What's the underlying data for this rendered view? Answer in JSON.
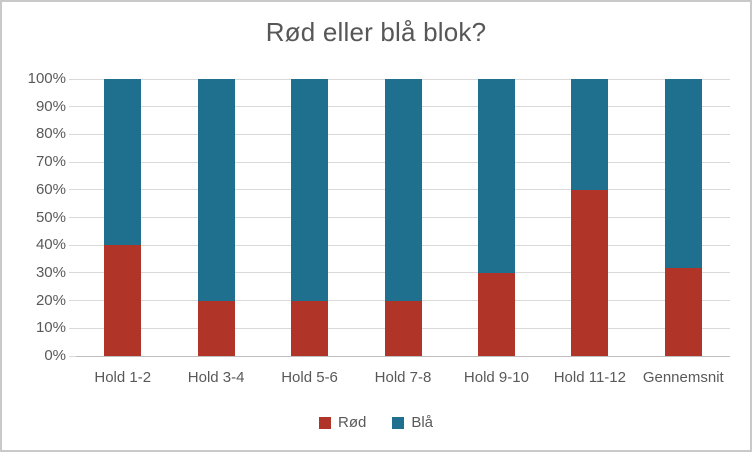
{
  "window": {
    "background_color": "#FFFFFF",
    "border_color": "#C9C9C9"
  },
  "chart_data": {
    "type": "bar",
    "subtype": "100-percent-stacked-column",
    "title": "Rød eller blå blok?",
    "categories": [
      "Hold 1-2",
      "Hold 3-4",
      "Hold 5-6",
      "Hold 7-8",
      "Hold 9-10",
      "Hold 11-12",
      "Gennemsnit"
    ],
    "series": [
      {
        "name": "Rød",
        "color": "#B03427",
        "values": [
          40,
          20,
          20,
          20,
          30,
          60,
          31.7
        ]
      },
      {
        "name": "Blå",
        "color": "#1F6F8E",
        "values": [
          60,
          80,
          80,
          80,
          70,
          40,
          68.3
        ]
      }
    ],
    "xlabel": "",
    "ylabel": "",
    "y_axis": {
      "min": 0,
      "max": 100,
      "step": 10,
      "tick_labels": [
        "0%",
        "10%",
        "20%",
        "30%",
        "40%",
        "50%",
        "60%",
        "70%",
        "80%",
        "90%",
        "100%"
      ]
    },
    "grid": true,
    "legend_position": "bottom",
    "gridline_color": "#D9D9D9",
    "axis_line_color": "#BFBFBF",
    "text_color": "#595959",
    "title_color": "#575757"
  }
}
